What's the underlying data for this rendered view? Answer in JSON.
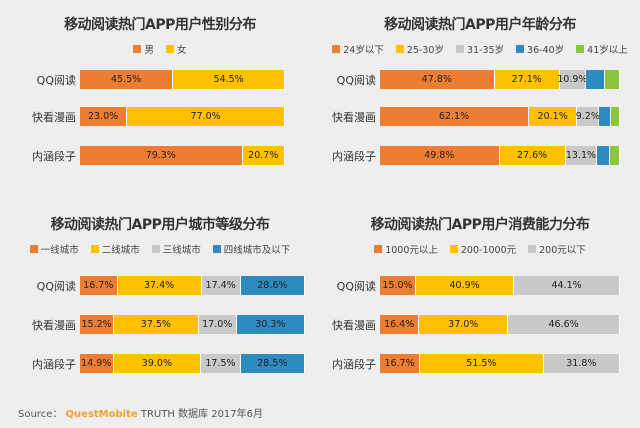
{
  "source": {
    "prefix": "Source：",
    "brand": "QuestMobite",
    "suffix": "TRUTH 数据库 2017年6月"
  },
  "chart_data": [
    {
      "type": "bar",
      "orientation": "horizontal-stacked",
      "title": "移动阅读热门APP用户性别分布",
      "categories": [
        "QQ阅读",
        "快看漫画",
        "内涵段子"
      ],
      "series": [
        {
          "name": "男",
          "color": "#ed7d31",
          "values": [
            45.5,
            23.0,
            79.3
          ],
          "labels": [
            "45.5%",
            "23.0%",
            "79.3%"
          ]
        },
        {
          "name": "女",
          "color": "#ffc000",
          "values": [
            54.5,
            77.0,
            20.7
          ],
          "labels": [
            "54.5%",
            "77.0%",
            "20.7%"
          ]
        }
      ],
      "xlim": [
        0,
        100
      ]
    },
    {
      "type": "bar",
      "orientation": "horizontal-stacked",
      "title": "移动阅读热门APP用户年龄分布",
      "categories": [
        "QQ阅读",
        "快看漫画",
        "内涵段子"
      ],
      "series": [
        {
          "name": "24岁以下",
          "color": "#ed7d31",
          "values": [
            47.8,
            62.1,
            49.8
          ],
          "labels": [
            "47.8%",
            "62.1%",
            "49.8%"
          ]
        },
        {
          "name": "25-30岁",
          "color": "#ffc000",
          "values": [
            27.1,
            20.1,
            27.6
          ],
          "labels": [
            "27.1%",
            "20.1%",
            "27.6%"
          ]
        },
        {
          "name": "31-35岁",
          "color": "#c9c9c9",
          "values": [
            10.9,
            9.2,
            13.1
          ],
          "labels": [
            "10.9%",
            "9.2%",
            "13.1%"
          ]
        },
        {
          "name": "36-40岁",
          "color": "#2e8bc0",
          "values": [
            8.0,
            5.0,
            5.5
          ],
          "labels": [
            "",
            "",
            ""
          ]
        },
        {
          "name": "41岁以上",
          "color": "#8cc63f",
          "values": [
            6.2,
            3.6,
            4.0
          ],
          "labels": [
            "",
            "",
            ""
          ]
        }
      ],
      "xlim": [
        0,
        100
      ]
    },
    {
      "type": "bar",
      "orientation": "horizontal-stacked",
      "title": "移动阅读热门APP用户城市等级分布",
      "categories": [
        "QQ阅读",
        "快看漫画",
        "内涵段子"
      ],
      "series": [
        {
          "name": "一线城市",
          "color": "#ed7d31",
          "values": [
            16.7,
            15.2,
            14.9
          ],
          "labels": [
            "16.7%",
            "15.2%",
            "14.9%"
          ]
        },
        {
          "name": "二线城市",
          "color": "#ffc000",
          "values": [
            37.4,
            37.5,
            39.0
          ],
          "labels": [
            "37.4%",
            "37.5%",
            "39.0%"
          ]
        },
        {
          "name": "三线城市",
          "color": "#c9c9c9",
          "values": [
            17.4,
            17.0,
            17.5
          ],
          "labels": [
            "17.4%",
            "17.0%",
            "17.5%"
          ]
        },
        {
          "name": "四线城市及以下",
          "color": "#2e8bc0",
          "values": [
            28.6,
            30.3,
            28.5
          ],
          "labels": [
            "28.6%",
            "30.3%",
            "28.5%"
          ]
        }
      ],
      "xlim": [
        0,
        100
      ]
    },
    {
      "type": "bar",
      "orientation": "horizontal-stacked",
      "title": "移动阅读热门APP用户消费能力分布",
      "categories": [
        "QQ阅读",
        "快看漫画",
        "内涵段子"
      ],
      "series": [
        {
          "name": "1000元以上",
          "color": "#ed7d31",
          "values": [
            15.0,
            16.4,
            16.7
          ],
          "labels": [
            "15.0%",
            "16.4%",
            "16.7%"
          ]
        },
        {
          "name": "200-1000元",
          "color": "#ffc000",
          "values": [
            40.9,
            37.0,
            51.5
          ],
          "labels": [
            "40.9%",
            "37.0%",
            "51.5%"
          ]
        },
        {
          "name": "200元以下",
          "color": "#c9c9c9",
          "values": [
            44.1,
            46.6,
            31.8
          ],
          "labels": [
            "44.1%",
            "46.6%",
            "31.8%"
          ]
        }
      ],
      "xlim": [
        0,
        100
      ]
    }
  ]
}
